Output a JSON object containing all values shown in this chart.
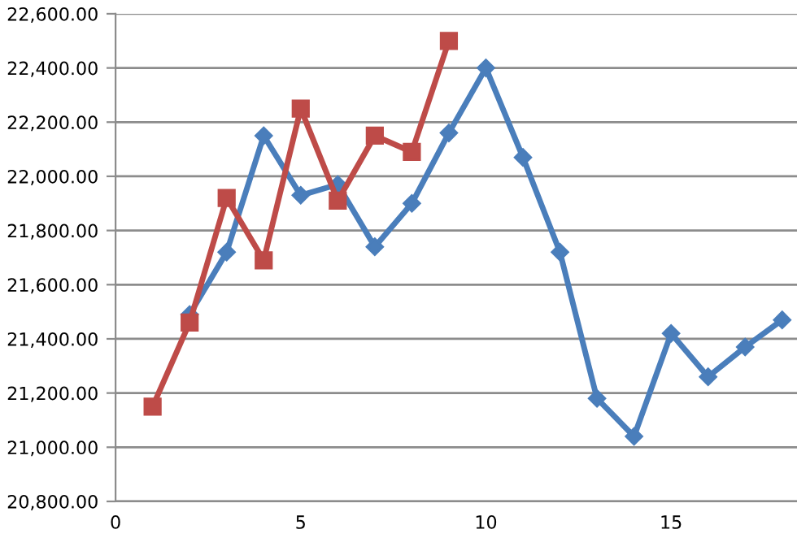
{
  "chart_data": {
    "type": "line",
    "series": [
      {
        "color": "#4a7ebb",
        "marker": "diamond",
        "x": [
          2,
          3,
          4,
          5,
          6,
          7,
          8,
          9,
          10,
          11,
          12,
          13,
          14,
          15,
          16,
          17,
          18
        ],
        "values": [
          21490,
          21720,
          22150,
          21930,
          21970,
          21740,
          21900,
          22160,
          22400,
          22070,
          21720,
          21180,
          21040,
          21420,
          21260,
          21370,
          21470
        ]
      },
      {
        "color": "#be4b48",
        "marker": "square",
        "x": [
          1,
          2,
          3,
          4,
          5,
          6,
          7,
          8,
          9
        ],
        "values": [
          21150,
          21460,
          21920,
          21690,
          22250,
          21910,
          22150,
          22090,
          22500
        ]
      }
    ],
    "xlim": [
      0,
      18.4
    ],
    "xticks": [
      0,
      5,
      10,
      15
    ],
    "ylim": [
      20800,
      22600
    ],
    "yticks": [
      {
        "value": 20800,
        "label": "20,800.00"
      },
      {
        "value": 21000,
        "label": "21,000.00"
      },
      {
        "value": 21200,
        "label": "21,200.00"
      },
      {
        "value": 21400,
        "label": "21,400.00"
      },
      {
        "value": 21600,
        "label": "21,600.00"
      },
      {
        "value": 21800,
        "label": "21,800.00"
      },
      {
        "value": 22000,
        "label": "22,000.00"
      },
      {
        "value": 22200,
        "label": "22,200.00"
      },
      {
        "value": 22400,
        "label": "22,400.00"
      },
      {
        "value": 22600,
        "label": "22,600.00"
      }
    ],
    "grid": "y",
    "line_style": "solid"
  }
}
